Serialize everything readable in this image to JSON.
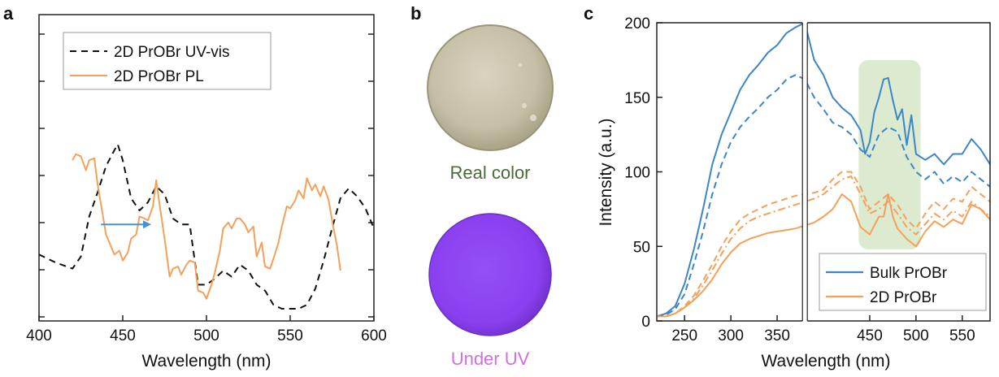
{
  "figure": {
    "panel_labels": [
      "a",
      "b",
      "c"
    ],
    "photo_labels": {
      "real": "Real color",
      "uv": "Under UV"
    },
    "colors": {
      "uvvis": "#111111",
      "pl": "#f5a05a",
      "bulk": "#3d85c6",
      "twoD": "#f5a05a",
      "arrow": "#4a90d9",
      "highlight": "#d6e8c8",
      "real_label": "#4a6a3a",
      "uv_label": "#d070e0",
      "real_disc": "#c9c4ad",
      "uv_disc": "#8a3ff0"
    }
  },
  "chart_data": [
    {
      "id": "a",
      "type": "line",
      "xlabel": "Wavelength (nm)",
      "ylabel": "",
      "xlim": [
        400,
        600
      ],
      "xticks": [
        400,
        450,
        500,
        550,
        600
      ],
      "ylim": [
        0,
        100
      ],
      "y_tick_labels_shown": false,
      "legend": {
        "position": "top-left"
      },
      "series": [
        {
          "name": "2D PrOBr UV-vis",
          "style": "dashed",
          "x": [
            400,
            410,
            420,
            425,
            430,
            435,
            440,
            445,
            447,
            450,
            455,
            460,
            465,
            470,
            475,
            480,
            485,
            490,
            495,
            500,
            505,
            510,
            515,
            520,
            525,
            530,
            535,
            540,
            545,
            550,
            555,
            560,
            565,
            570,
            575,
            580,
            585,
            590,
            595,
            600
          ],
          "y": [
            27,
            23,
            20,
            26,
            46,
            58,
            71,
            79,
            82,
            74,
            55,
            49,
            53,
            61,
            57,
            45,
            42,
            42,
            12,
            12,
            15,
            19,
            16,
            22,
            19,
            12,
            9,
            2,
            0,
            0,
            0,
            2,
            10,
            24,
            40,
            55,
            60,
            56,
            50,
            40
          ]
        },
        {
          "name": "2D PrOBr PL",
          "style": "solid",
          "x": [
            420,
            422,
            425,
            428,
            430,
            433,
            435,
            438,
            440,
            443,
            445,
            448,
            450,
            453,
            455,
            458,
            460,
            463,
            465,
            468,
            470,
            472,
            475,
            478,
            480,
            483,
            485,
            488,
            490,
            493,
            495,
            498,
            500,
            503,
            505,
            508,
            510,
            513,
            515,
            518,
            520,
            523,
            525,
            528,
            530,
            533,
            535,
            538,
            540,
            543,
            545,
            548,
            550,
            553,
            555,
            558,
            560,
            563,
            565,
            568,
            570,
            573,
            575,
            578,
            580
          ],
          "y": [
            74,
            77,
            76,
            69,
            74,
            75,
            62,
            47,
            37,
            31,
            27,
            29,
            24,
            28,
            35,
            37,
            46,
            45,
            44,
            51,
            64,
            52,
            35,
            16,
            20,
            21,
            17,
            22,
            24,
            23,
            9,
            8,
            5,
            12,
            18,
            29,
            40,
            43,
            40,
            45,
            45,
            42,
            38,
            41,
            26,
            33,
            21,
            20,
            25,
            33,
            41,
            51,
            50,
            54,
            59,
            55,
            65,
            59,
            62,
            56,
            61,
            54,
            44,
            31,
            19
          ]
        }
      ],
      "annotation": {
        "type": "arrow",
        "from_x": 437,
        "to_x": 467,
        "y": 42
      }
    },
    {
      "id": "c",
      "type": "line",
      "xlabel": "Wavelength (nm)",
      "ylabel": "Intensity (a.u.)",
      "xlim": [
        220,
        580
      ],
      "xticks": [
        250,
        300,
        350,
        450,
        500,
        550
      ],
      "ylim": [
        0,
        200
      ],
      "yticks": [
        0,
        50,
        100,
        150,
        200
      ],
      "axis_break_at": 380,
      "legend": {
        "position": "bottom-right"
      },
      "highlight_x": [
        438,
        505
      ],
      "series": [
        {
          "name": "Bulk PrOBr",
          "style": "solid",
          "x": [
            220,
            230,
            240,
            250,
            260,
            270,
            280,
            290,
            300,
            310,
            320,
            330,
            340,
            350,
            360,
            370,
            380,
            390,
            400,
            410,
            420,
            430,
            440,
            445,
            450,
            455,
            460,
            465,
            470,
            475,
            480,
            485,
            490,
            495,
            500,
            510,
            520,
            530,
            540,
            550,
            560,
            570,
            580
          ],
          "y": [
            3,
            5,
            10,
            25,
            48,
            75,
            105,
            125,
            140,
            155,
            165,
            172,
            180,
            185,
            193,
            197,
            200,
            175,
            165,
            150,
            143,
            138,
            128,
            112,
            120,
            140,
            150,
            162,
            163,
            148,
            135,
            142,
            118,
            138,
            112,
            108,
            112,
            105,
            112,
            112,
            122,
            115,
            105
          ]
        },
        {
          "name": "",
          "style": "dashed",
          "x": [
            220,
            230,
            240,
            250,
            260,
            270,
            280,
            290,
            300,
            310,
            320,
            330,
            340,
            350,
            360,
            370,
            380,
            390,
            400,
            410,
            420,
            430,
            440,
            450,
            460,
            470,
            480,
            490,
            500,
            510,
            520,
            530,
            540,
            550,
            560,
            570,
            580
          ],
          "y": [
            3,
            4,
            8,
            18,
            38,
            60,
            85,
            105,
            120,
            130,
            137,
            143,
            150,
            155,
            162,
            165,
            162,
            150,
            142,
            133,
            130,
            125,
            115,
            110,
            125,
            130,
            127,
            110,
            100,
            95,
            100,
            92,
            97,
            93,
            100,
            95,
            90
          ]
        },
        {
          "name": "2D PrOBr",
          "style": "solid",
          "x": [
            220,
            230,
            240,
            250,
            260,
            270,
            280,
            290,
            300,
            310,
            320,
            330,
            340,
            350,
            360,
            370,
            380,
            390,
            400,
            410,
            420,
            430,
            440,
            450,
            460,
            465,
            470,
            475,
            480,
            490,
            500,
            510,
            520,
            530,
            540,
            550,
            560,
            570,
            580
          ],
          "y": [
            3,
            3,
            5,
            9,
            14,
            20,
            28,
            38,
            46,
            52,
            55,
            57,
            59,
            60,
            61,
            62,
            64,
            66,
            70,
            75,
            85,
            80,
            63,
            58,
            70,
            70,
            85,
            70,
            62,
            55,
            50,
            60,
            67,
            63,
            68,
            65,
            78,
            75,
            68
          ]
        },
        {
          "name": "",
          "style": "dashed",
          "x": [
            220,
            230,
            240,
            250,
            260,
            270,
            280,
            290,
            300,
            310,
            320,
            330,
            340,
            350,
            360,
            370,
            380,
            390,
            400,
            410,
            420,
            430,
            440,
            450,
            460,
            470,
            480,
            490,
            500,
            510,
            520,
            530,
            540,
            550,
            560,
            570,
            580
          ],
          "y": [
            3,
            3,
            5,
            10,
            17,
            27,
            38,
            50,
            60,
            68,
            72,
            75,
            78,
            80,
            82,
            84,
            85,
            86,
            88,
            95,
            100,
            100,
            90,
            75,
            80,
            85,
            78,
            68,
            62,
            72,
            80,
            75,
            82,
            80,
            90,
            85,
            80
          ]
        },
        {
          "name": "",
          "style": "dashdot",
          "x": [
            220,
            230,
            240,
            250,
            260,
            270,
            280,
            290,
            300,
            310,
            320,
            330,
            340,
            350,
            360,
            370,
            380,
            390,
            400,
            410,
            420,
            430,
            440,
            450,
            460,
            470,
            480,
            490,
            500,
            510,
            520,
            530,
            540,
            550,
            560,
            570,
            580
          ],
          "y": [
            3,
            3,
            5,
            9,
            15,
            24,
            34,
            45,
            55,
            62,
            67,
            70,
            72,
            74,
            76,
            78,
            80,
            82,
            85,
            90,
            95,
            97,
            85,
            72,
            75,
            80,
            72,
            63,
            58,
            65,
            72,
            68,
            74,
            70,
            80,
            75,
            70
          ]
        }
      ]
    }
  ]
}
